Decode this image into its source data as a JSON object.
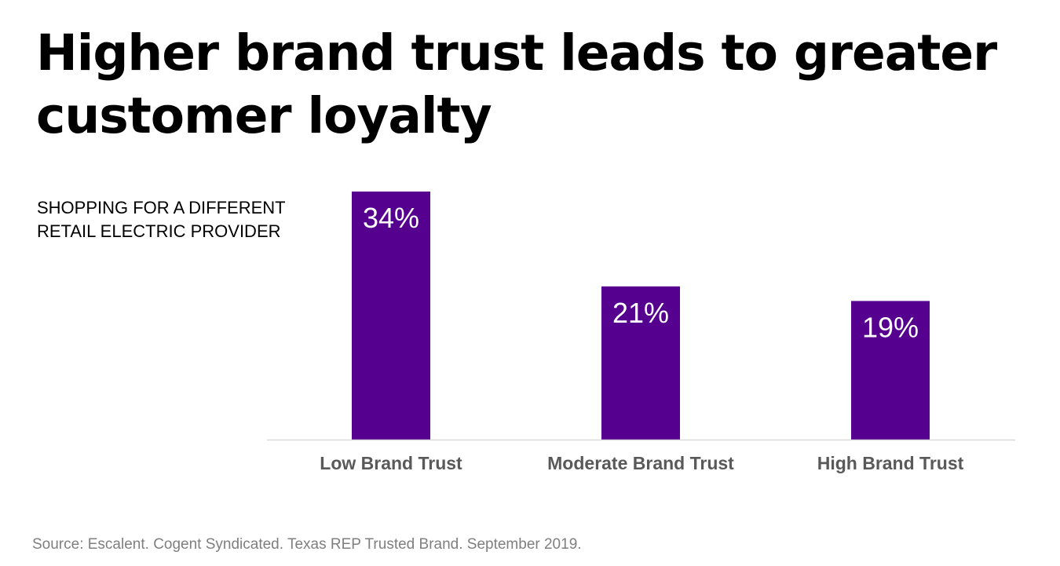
{
  "title": "Higher brand trust leads to greater customer loyalty",
  "subtitle": "SHOPPING FOR A DIFFERENT RETAIL ELECTRIC PROVIDER",
  "source": "Source: Escalent. Cogent Syndicated. Texas REP Trusted Brand. September 2019.",
  "colors": {
    "bar": "#55008F",
    "bar_label": "#FFFFFF",
    "axis_line": "#D9D9D9",
    "category_label": "#595959",
    "source": "#7F7F7F"
  },
  "chart_data": {
    "type": "bar",
    "categories": [
      "Low Brand Trust",
      "Moderate Brand Trust",
      "High Brand Trust"
    ],
    "values": [
      34,
      21,
      19
    ],
    "value_labels": [
      "34%",
      "21%",
      "19%"
    ],
    "ylim": [
      0,
      34
    ],
    "grid": false,
    "legend": "none"
  }
}
